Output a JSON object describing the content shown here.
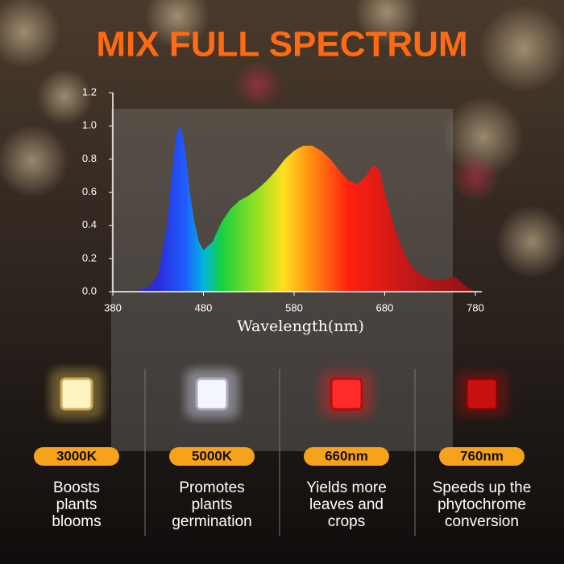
{
  "chart_data": {
    "type": "area",
    "title": "MIX FULL SPECTRUM",
    "x": [
      400,
      410,
      420,
      430,
      440,
      445,
      450,
      455,
      460,
      465,
      470,
      475,
      480,
      490,
      500,
      510,
      520,
      530,
      540,
      550,
      560,
      570,
      580,
      590,
      600,
      610,
      620,
      630,
      640,
      650,
      660,
      665,
      670,
      675,
      680,
      690,
      700,
      710,
      720,
      730,
      740,
      750,
      755,
      760,
      770,
      780
    ],
    "values": [
      0,
      0.01,
      0.03,
      0.1,
      0.4,
      0.7,
      0.95,
      1.0,
      0.85,
      0.6,
      0.42,
      0.3,
      0.25,
      0.3,
      0.42,
      0.5,
      0.55,
      0.58,
      0.62,
      0.67,
      0.73,
      0.8,
      0.85,
      0.88,
      0.88,
      0.85,
      0.8,
      0.73,
      0.67,
      0.65,
      0.7,
      0.75,
      0.76,
      0.72,
      0.6,
      0.4,
      0.25,
      0.15,
      0.1,
      0.08,
      0.07,
      0.08,
      0.09,
      0.08,
      0.03,
      0
    ],
    "x_label": "Wavelength(nm)",
    "xlim": [
      380,
      780
    ],
    "xticks": [
      380,
      480,
      580,
      680,
      780
    ],
    "ylim": [
      0,
      1.2
    ],
    "yticks": [
      {
        "value": 0,
        "label": "0.0"
      },
      0.2,
      0.4,
      0.6,
      0.8,
      {
        "value": 1,
        "label": "1.0"
      },
      1.2
    ]
  },
  "features": [
    {
      "label": "3000K",
      "description": [
        "Boosts",
        "plants",
        "blooms"
      ]
    },
    {
      "label": "5000K",
      "description": [
        "Promotes",
        "plants",
        "germination"
      ]
    },
    {
      "label": "660nm",
      "description": [
        "Yields more",
        "leaves and",
        "crops"
      ]
    },
    {
      "label": "760nm",
      "description": [
        "Speeds up the",
        "phytochrome",
        "conversion"
      ]
    }
  ]
}
